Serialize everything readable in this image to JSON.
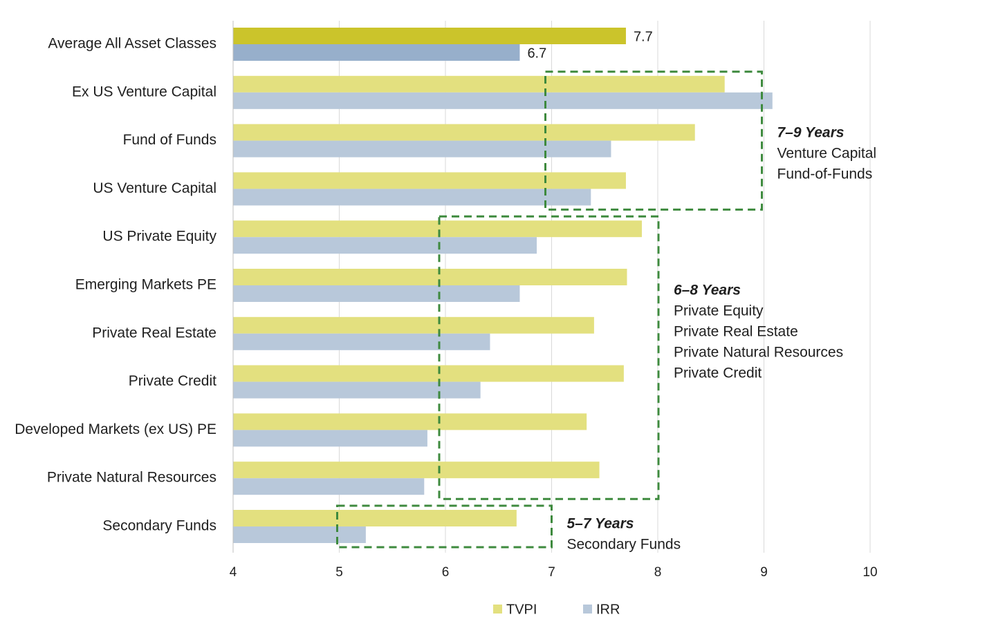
{
  "chart_data": {
    "type": "bar",
    "orientation": "horizontal",
    "categories": [
      "Average All Asset Classes",
      "Ex US Venture Capital",
      "Fund of Funds",
      "US Venture Capital",
      "US Private Equity",
      "Emerging Markets PE",
      "Private Real Estate",
      "Private Credit",
      "Developed Markets (ex US) PE",
      "Private Natural Resources",
      "Secondary Funds"
    ],
    "series": [
      {
        "name": "TVPI",
        "color": "#e3e07f",
        "highlight_color": "#cbc42b",
        "values": [
          7.7,
          8.63,
          8.35,
          7.7,
          7.85,
          7.71,
          7.4,
          7.68,
          7.33,
          7.45,
          6.67
        ]
      },
      {
        "name": "IRR",
        "color": "#b8c8da",
        "highlight_color": "#97afcb",
        "values": [
          6.7,
          9.08,
          7.56,
          7.37,
          6.86,
          6.7,
          6.42,
          6.33,
          5.83,
          5.8,
          5.25
        ]
      }
    ],
    "data_labels": [
      {
        "category": "Average All Asset Classes",
        "series": "TVPI",
        "text": "7.7"
      },
      {
        "category": "Average All Asset Classes",
        "series": "IRR",
        "text": "6.7"
      }
    ],
    "xlim": [
      4,
      10
    ],
    "xticks": [
      "4",
      "5",
      "6",
      "7",
      "8",
      "9",
      "10"
    ],
    "grid": true,
    "legend": "bottom",
    "title": "",
    "xlabel": "",
    "ylabel": "",
    "annotations": [
      {
        "range": [
          7,
          9
        ],
        "categories": [
          "Ex US Venture Capital",
          "US Venture Capital"
        ],
        "title": "7–9 Years",
        "lines": [
          "Venture Capital",
          "Fund-of-Funds"
        ],
        "border_color": "#3e8a3e"
      },
      {
        "range": [
          6,
          8
        ],
        "categories": [
          "US Private Equity",
          "Private Natural Resources"
        ],
        "title": "6–8 Years",
        "lines": [
          "Private Equity",
          "Private Real Estate",
          "Private Natural Resources",
          "Private Credit"
        ],
        "border_color": "#3e8a3e"
      },
      {
        "range": [
          5,
          7
        ],
        "categories": [
          "Secondary Funds",
          "Secondary Funds"
        ],
        "title": "5–7 Years",
        "lines": [
          "Secondary Funds"
        ],
        "border_color": "#3e8a3e"
      }
    ]
  }
}
